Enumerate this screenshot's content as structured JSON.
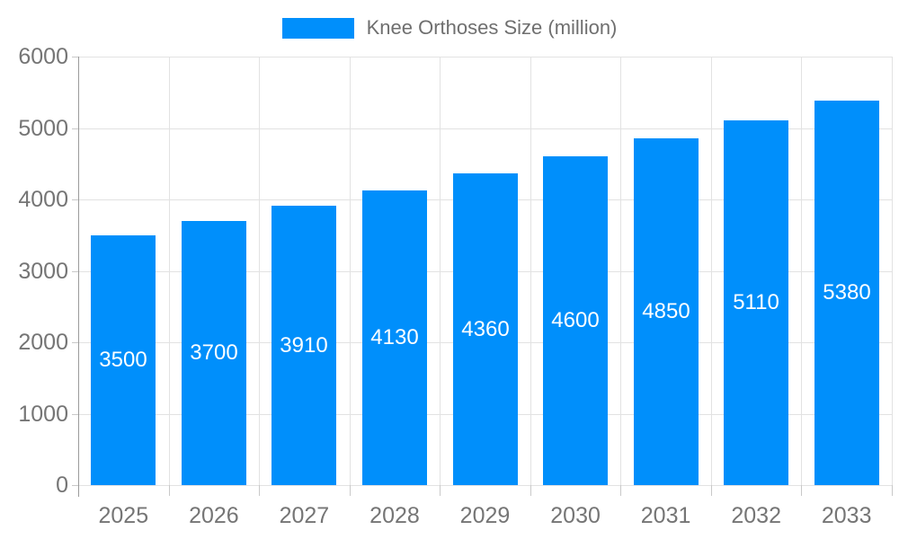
{
  "chart_data": {
    "type": "bar",
    "title": "Knee Orthoses Size (million)",
    "legend": {
      "entries": [
        "Knee Orthoses Size (million)"
      ],
      "position": "top"
    },
    "categories": [
      "2025",
      "2026",
      "2027",
      "2028",
      "2029",
      "2030",
      "2031",
      "2032",
      "2033"
    ],
    "values": [
      3500,
      3700,
      3910,
      4130,
      4360,
      4600,
      4850,
      5110,
      5380
    ],
    "value_labels_shown": true,
    "xlabel": "",
    "ylabel": "",
    "ylim": [
      0,
      6000
    ],
    "yticks": [
      0,
      1000,
      2000,
      3000,
      4000,
      5000,
      6000
    ],
    "grid": true,
    "colors": {
      "bar": "#008FFB",
      "value_label": "#ffffff",
      "axis_label": "#757575",
      "legend_text": "#6f6f6f",
      "gridline": "#e2e2e2",
      "tick": "#c9c9c9",
      "axis_line": "#9b9b9b",
      "background": "#ffffff"
    }
  }
}
